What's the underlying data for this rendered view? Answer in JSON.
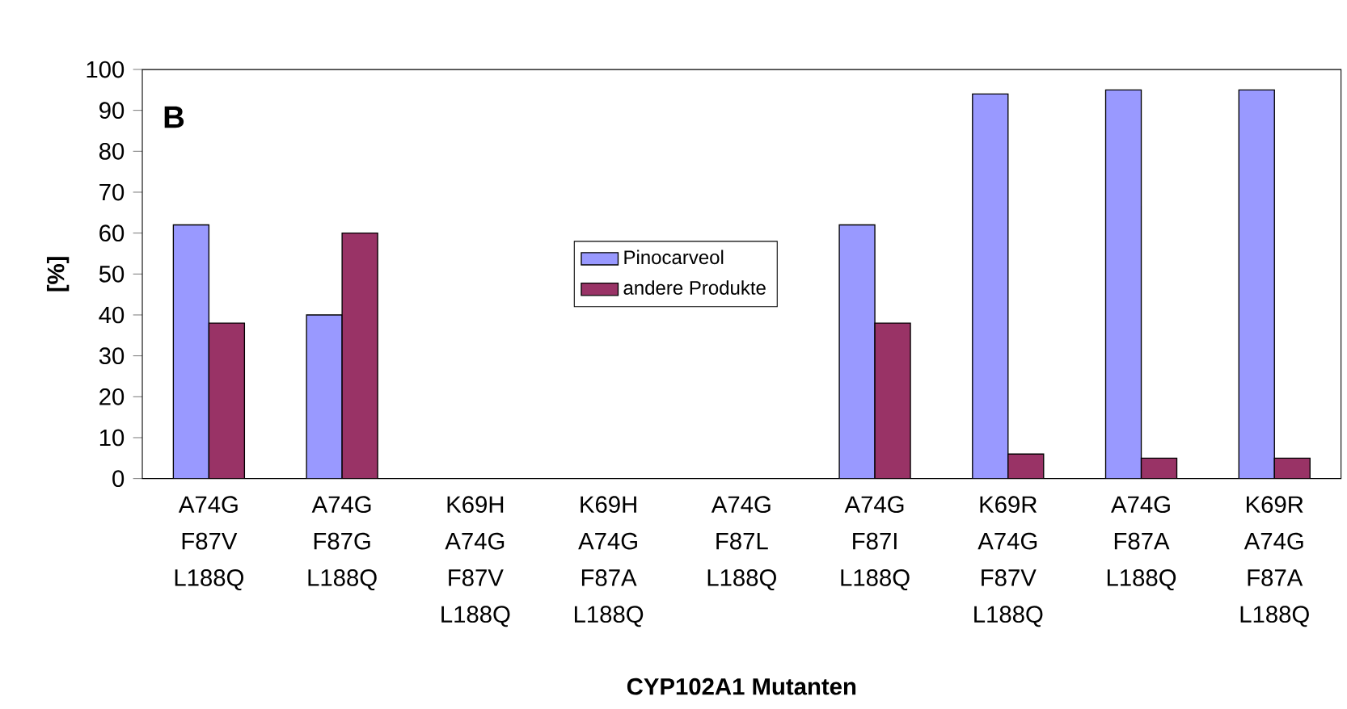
{
  "chart_data": {
    "type": "bar",
    "xlabel": "CYP102A1 Mutanten",
    "ylabel": "[%]",
    "categories": [
      "A74G F87V L188Q",
      "A74G F87G L188Q",
      "K69H A74G F87V L188Q",
      "K69H A74G F87A L188Q",
      "A74G F87L L188Q",
      "A74G F87I L188Q",
      "K69R A74G F87V L188Q",
      "A74G F87A L188Q",
      "K69R A74G F87A L188Q"
    ],
    "series": [
      {
        "name": "Pinocarveol",
        "color": "#9999ff",
        "values": [
          62,
          40,
          null,
          null,
          null,
          62,
          94,
          95,
          95
        ]
      },
      {
        "name": "andere Produkte",
        "color": "#993366",
        "values": [
          38,
          60,
          null,
          null,
          null,
          38,
          6,
          5,
          5
        ]
      }
    ],
    "ylim": [
      0,
      100
    ],
    "yticks": [
      0,
      10,
      20,
      30,
      40,
      50,
      60,
      70,
      80,
      90,
      100
    ],
    "grid": false,
    "legend": "center",
    "annotations": [
      "B"
    ]
  }
}
